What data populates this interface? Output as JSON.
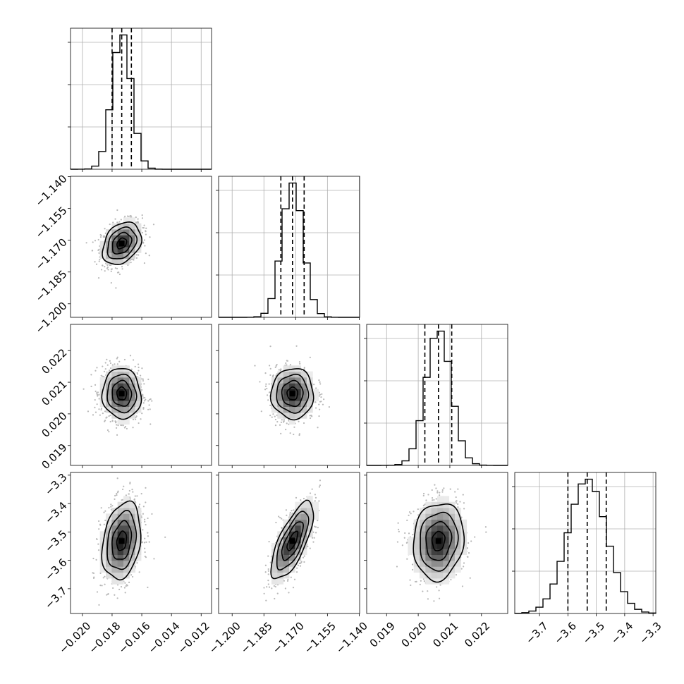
{
  "chart_data": {
    "type": "corner",
    "description_free": true,
    "parameters": [
      {
        "index": 0,
        "range": [
          -0.0208,
          -0.0113
        ],
        "ticks": [
          -0.02,
          -0.018,
          -0.016,
          -0.014,
          -0.012
        ],
        "tick_labels": [
          "−0.020",
          "−0.018",
          "−0.016",
          "−0.014",
          "−0.012"
        ],
        "mean": -0.01735,
        "sigma": 0.00065,
        "quantiles": [
          -0.018,
          -0.01735,
          -0.0167
        ]
      },
      {
        "index": 1,
        "range": [
          -1.2064,
          -1.1398
        ],
        "ticks": [
          -1.2,
          -1.185,
          -1.17,
          -1.155,
          -1.14
        ],
        "tick_labels": [
          "−1.200",
          "−1.185",
          "−1.170",
          "−1.155",
          "−1.140"
        ],
        "mean": -1.1715,
        "sigma": 0.005,
        "quantiles": [
          -1.177,
          -1.1715,
          -1.166
        ]
      },
      {
        "index": 2,
        "range": [
          0.01837,
          0.02283
        ],
        "ticks": [
          0.019,
          0.02,
          0.021,
          0.022
        ],
        "tick_labels": [
          "0.019",
          "0.020",
          "0.021",
          "0.022"
        ],
        "mean": 0.02064,
        "sigma": 0.0004,
        "quantiles": [
          0.02021,
          0.02064,
          0.02106
        ]
      },
      {
        "index": 3,
        "range": [
          -3.7872,
          -3.2904
        ],
        "ticks": [
          -3.7,
          -3.6,
          -3.5,
          -3.4,
          -3.3
        ],
        "tick_labels": [
          "−3.7",
          "−3.6",
          "−3.5",
          "−3.4",
          "−3.3"
        ],
        "mean": -3.532,
        "sigma": 0.068,
        "quantiles": [
          -3.6,
          -3.532,
          -3.465
        ]
      }
    ],
    "pair_correlations": {
      "1-0": 0.3,
      "2-0": -0.05,
      "2-1": 0.0,
      "3-0": 0.25,
      "3-1": 0.72,
      "3-2": 0.1
    },
    "histogram_bins": 20,
    "contour_levels": 4,
    "grid": true,
    "quantile_lines": "dashed"
  }
}
